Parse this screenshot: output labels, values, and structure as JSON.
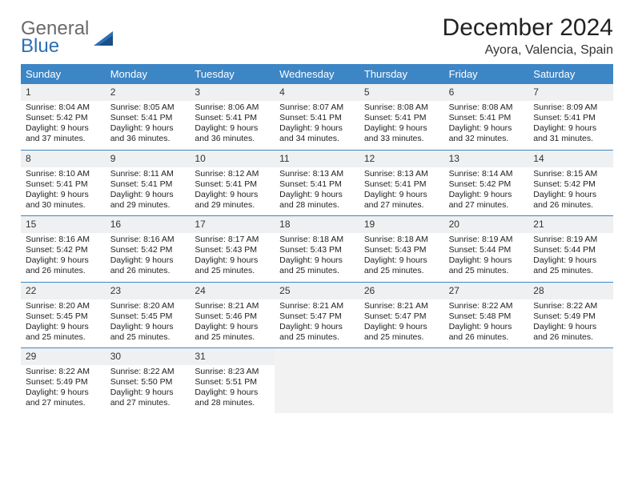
{
  "logo": {
    "word1": "General",
    "word2": "Blue"
  },
  "title": "December 2024",
  "location": "Ayora, Valencia, Spain",
  "colors": {
    "header_bg": "#3d86c6",
    "header_text": "#ffffff",
    "daynum_bg": "#eef0f1",
    "rule": "#3d86c6",
    "logo_gray": "#6a6a6a",
    "logo_blue": "#2d6fb5"
  },
  "dow": [
    "Sunday",
    "Monday",
    "Tuesday",
    "Wednesday",
    "Thursday",
    "Friday",
    "Saturday"
  ],
  "grid": {
    "rows": 5,
    "cols": 7,
    "first_weekday_index": 0,
    "days_in_month": 31
  },
  "days": {
    "1": {
      "sunrise": "8:04 AM",
      "sunset": "5:42 PM",
      "daylight": "9 hours and 37 minutes."
    },
    "2": {
      "sunrise": "8:05 AM",
      "sunset": "5:41 PM",
      "daylight": "9 hours and 36 minutes."
    },
    "3": {
      "sunrise": "8:06 AM",
      "sunset": "5:41 PM",
      "daylight": "9 hours and 36 minutes."
    },
    "4": {
      "sunrise": "8:07 AM",
      "sunset": "5:41 PM",
      "daylight": "9 hours and 34 minutes."
    },
    "5": {
      "sunrise": "8:08 AM",
      "sunset": "5:41 PM",
      "daylight": "9 hours and 33 minutes."
    },
    "6": {
      "sunrise": "8:08 AM",
      "sunset": "5:41 PM",
      "daylight": "9 hours and 32 minutes."
    },
    "7": {
      "sunrise": "8:09 AM",
      "sunset": "5:41 PM",
      "daylight": "9 hours and 31 minutes."
    },
    "8": {
      "sunrise": "8:10 AM",
      "sunset": "5:41 PM",
      "daylight": "9 hours and 30 minutes."
    },
    "9": {
      "sunrise": "8:11 AM",
      "sunset": "5:41 PM",
      "daylight": "9 hours and 29 minutes."
    },
    "10": {
      "sunrise": "8:12 AM",
      "sunset": "5:41 PM",
      "daylight": "9 hours and 29 minutes."
    },
    "11": {
      "sunrise": "8:13 AM",
      "sunset": "5:41 PM",
      "daylight": "9 hours and 28 minutes."
    },
    "12": {
      "sunrise": "8:13 AM",
      "sunset": "5:41 PM",
      "daylight": "9 hours and 27 minutes."
    },
    "13": {
      "sunrise": "8:14 AM",
      "sunset": "5:42 PM",
      "daylight": "9 hours and 27 minutes."
    },
    "14": {
      "sunrise": "8:15 AM",
      "sunset": "5:42 PM",
      "daylight": "9 hours and 26 minutes."
    },
    "15": {
      "sunrise": "8:16 AM",
      "sunset": "5:42 PM",
      "daylight": "9 hours and 26 minutes."
    },
    "16": {
      "sunrise": "8:16 AM",
      "sunset": "5:42 PM",
      "daylight": "9 hours and 26 minutes."
    },
    "17": {
      "sunrise": "8:17 AM",
      "sunset": "5:43 PM",
      "daylight": "9 hours and 25 minutes."
    },
    "18": {
      "sunrise": "8:18 AM",
      "sunset": "5:43 PM",
      "daylight": "9 hours and 25 minutes."
    },
    "19": {
      "sunrise": "8:18 AM",
      "sunset": "5:43 PM",
      "daylight": "9 hours and 25 minutes."
    },
    "20": {
      "sunrise": "8:19 AM",
      "sunset": "5:44 PM",
      "daylight": "9 hours and 25 minutes."
    },
    "21": {
      "sunrise": "8:19 AM",
      "sunset": "5:44 PM",
      "daylight": "9 hours and 25 minutes."
    },
    "22": {
      "sunrise": "8:20 AM",
      "sunset": "5:45 PM",
      "daylight": "9 hours and 25 minutes."
    },
    "23": {
      "sunrise": "8:20 AM",
      "sunset": "5:45 PM",
      "daylight": "9 hours and 25 minutes."
    },
    "24": {
      "sunrise": "8:21 AM",
      "sunset": "5:46 PM",
      "daylight": "9 hours and 25 minutes."
    },
    "25": {
      "sunrise": "8:21 AM",
      "sunset": "5:47 PM",
      "daylight": "9 hours and 25 minutes."
    },
    "26": {
      "sunrise": "8:21 AM",
      "sunset": "5:47 PM",
      "daylight": "9 hours and 25 minutes."
    },
    "27": {
      "sunrise": "8:22 AM",
      "sunset": "5:48 PM",
      "daylight": "9 hours and 26 minutes."
    },
    "28": {
      "sunrise": "8:22 AM",
      "sunset": "5:49 PM",
      "daylight": "9 hours and 26 minutes."
    },
    "29": {
      "sunrise": "8:22 AM",
      "sunset": "5:49 PM",
      "daylight": "9 hours and 27 minutes."
    },
    "30": {
      "sunrise": "8:22 AM",
      "sunset": "5:50 PM",
      "daylight": "9 hours and 27 minutes."
    },
    "31": {
      "sunrise": "8:23 AM",
      "sunset": "5:51 PM",
      "daylight": "9 hours and 28 minutes."
    }
  },
  "labels": {
    "sunrise": "Sunrise: ",
    "sunset": "Sunset: ",
    "daylight": "Daylight: "
  }
}
